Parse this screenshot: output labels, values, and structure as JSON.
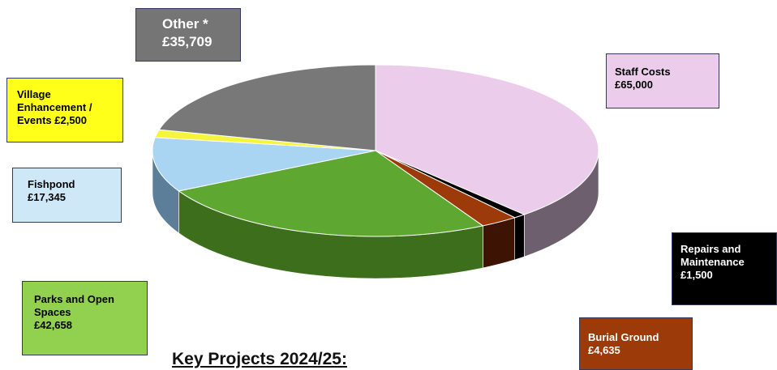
{
  "page": {
    "title": "Key Projects 2024/25:"
  },
  "chart_data": {
    "type": "pie",
    "style": "3d",
    "title": "",
    "slices": [
      {
        "label_lines": [
          "Staff Costs",
          "£65,000"
        ],
        "value": 65000,
        "color": "#ebcdeb",
        "side_color": "#6e5f6e"
      },
      {
        "label_lines": [
          "Repairs and",
          "Maintenance",
          "£1,500"
        ],
        "value": 1500,
        "color": "#000000",
        "side_color": "#000000"
      },
      {
        "label_lines": [
          "Burial Ground",
          "£4,635"
        ],
        "value": 4635,
        "color": "#9c3a0a",
        "side_color": "#3d1404"
      },
      {
        "label_lines": [
          "Parks and Open",
          "Spaces",
          "£42,658"
        ],
        "value": 42658,
        "color": "#5ea832",
        "side_color": "#3c6e1c"
      },
      {
        "label_lines": [
          "Fishpond",
          "£17,345"
        ],
        "value": 17345,
        "color": "#a9d4f2",
        "side_color": "#5c7e98"
      },
      {
        "label_lines": [
          "Village",
          "Enhancement /",
          "Events £2,500"
        ],
        "value": 2500,
        "color": "#f5f53c",
        "side_color": "#9a9a1f"
      },
      {
        "label_lines": [
          "Other  *",
          "£35,709"
        ],
        "value": 35709,
        "color": "#787878",
        "side_color": "#3c3c3c"
      }
    ]
  }
}
